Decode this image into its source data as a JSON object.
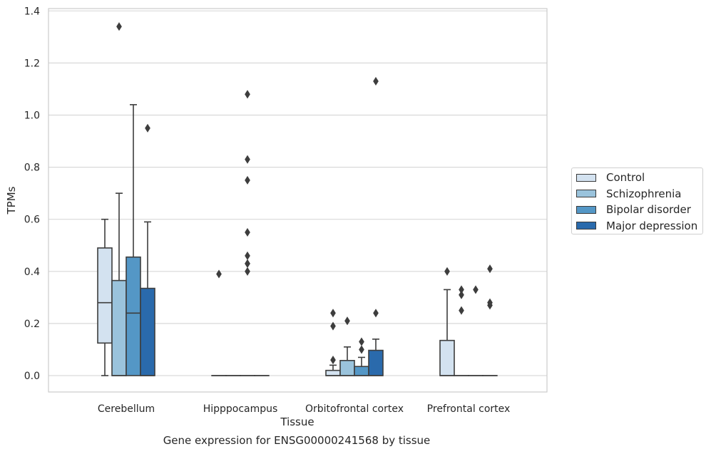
{
  "chart_data": {
    "type": "box",
    "title": "",
    "caption": "Gene expression for ENSG00000241568 by tissue",
    "xlabel": "Tissue",
    "ylabel": "TPMs",
    "ylim": [
      -0.065,
      1.41
    ],
    "yticks": [
      "0.0",
      "0.2",
      "0.4",
      "0.6",
      "0.8",
      "1.0",
      "1.2",
      "1.4"
    ],
    "ytick_values": [
      0,
      0.2,
      0.4,
      0.6,
      0.8,
      1.0,
      1.2,
      1.4
    ],
    "grid": "horizontal",
    "legend_position": "right",
    "categories": [
      "Cerebellum",
      "Hipppocampus",
      "Orbitofrontal cortex",
      "Prefrontal cortex"
    ],
    "series": [
      {
        "name": "Control",
        "color": "#d3e2f0",
        "boxes": [
          {
            "min": 0.0,
            "q1": 0.125,
            "median": 0.28,
            "q3": 0.49,
            "max": 0.6,
            "outliers": []
          },
          {
            "min": 0.0,
            "q1": 0.0,
            "median": 0.0,
            "q3": 0.0,
            "max": 0.0,
            "outliers": [
              0.39
            ]
          },
          {
            "min": 0.0,
            "q1": 0.0,
            "median": 0.0,
            "q3": 0.02,
            "max": 0.04,
            "outliers": [
              0.06,
              0.19,
              0.24
            ]
          },
          {
            "min": 0.0,
            "q1": 0.0,
            "median": 0.0,
            "q3": 0.135,
            "max": 0.33,
            "outliers": [
              0.4
            ]
          }
        ]
      },
      {
        "name": "Schizophrenia",
        "color": "#9ac3dc",
        "boxes": [
          {
            "min": 0.0,
            "q1": 0.0,
            "median": 0.0,
            "q3": 0.365,
            "max": 0.7,
            "outliers": [
              1.34
            ]
          },
          {
            "min": 0.0,
            "q1": 0.0,
            "median": 0.0,
            "q3": 0.0,
            "max": 0.0,
            "outliers": []
          },
          {
            "min": 0.0,
            "q1": 0.0,
            "median": 0.0,
            "q3": 0.058,
            "max": 0.11,
            "outliers": [
              0.21
            ]
          },
          {
            "min": 0.0,
            "q1": 0.0,
            "median": 0.0,
            "q3": 0.0,
            "max": 0.0,
            "outliers": [
              0.25,
              0.31,
              0.33
            ]
          }
        ]
      },
      {
        "name": "Bipolar disorder",
        "color": "#5497c6",
        "boxes": [
          {
            "min": 0.0,
            "q1": 0.0,
            "median": 0.24,
            "q3": 0.455,
            "max": 1.04,
            "outliers": []
          },
          {
            "min": 0.0,
            "q1": 0.0,
            "median": 0.0,
            "q3": 0.0,
            "max": 0.0,
            "outliers": [
              0.4,
              0.43,
              0.43,
              0.46,
              0.55,
              0.75,
              0.83,
              1.08
            ]
          },
          {
            "min": 0.0,
            "q1": 0.0,
            "median": 0.0,
            "q3": 0.035,
            "max": 0.07,
            "outliers": [
              0.1,
              0.13
            ]
          },
          {
            "min": 0.0,
            "q1": 0.0,
            "median": 0.0,
            "q3": 0.0,
            "max": 0.0,
            "outliers": [
              0.33
            ]
          }
        ]
      },
      {
        "name": "Major depression",
        "color": "#2a6aac",
        "boxes": [
          {
            "min": 0.0,
            "q1": 0.0,
            "median": 0.0,
            "q3": 0.335,
            "max": 0.59,
            "outliers": [
              0.95
            ]
          },
          {
            "min": 0.0,
            "q1": 0.0,
            "median": 0.0,
            "q3": 0.0,
            "max": 0.0,
            "outliers": []
          },
          {
            "min": 0.0,
            "q1": 0.0,
            "median": 0.0,
            "q3": 0.097,
            "max": 0.14,
            "outliers": [
              0.24,
              1.13
            ]
          },
          {
            "min": 0.0,
            "q1": 0.0,
            "median": 0.0,
            "q3": 0.0,
            "max": 0.0,
            "outliers": [
              0.27,
              0.28,
              0.41
            ]
          }
        ]
      }
    ]
  }
}
